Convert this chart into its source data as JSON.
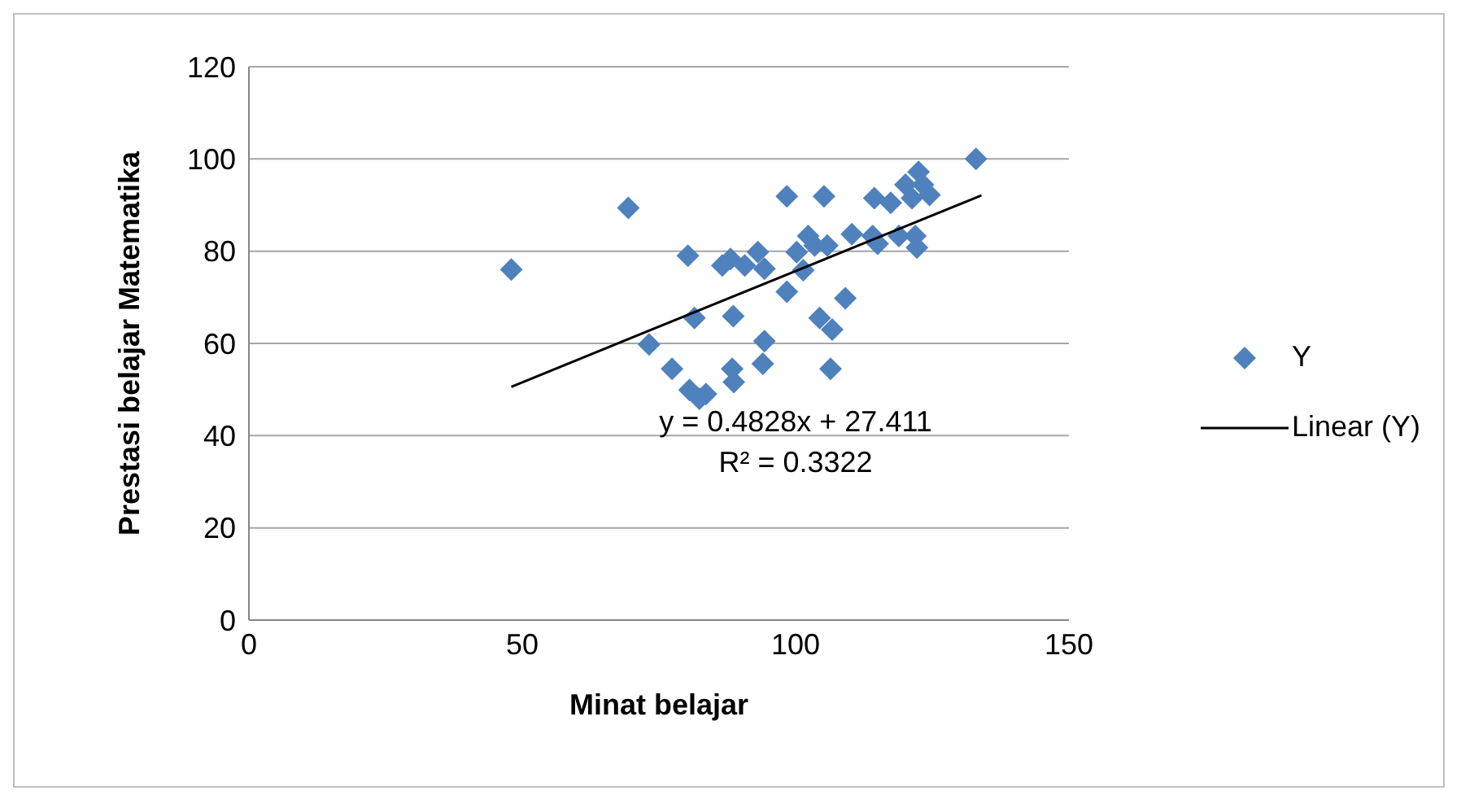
{
  "chart_data": {
    "type": "scatter",
    "xlabel": "Minat belajar",
    "ylabel": "Prestasi belajar Matematika",
    "xlim": [
      0,
      150
    ],
    "xticks": [
      0,
      50,
      100,
      150
    ],
    "ylim": [
      0,
      120
    ],
    "yticks": [
      0,
      20,
      40,
      60,
      80,
      100,
      120
    ],
    "grid": "y",
    "legend": "right",
    "series": [
      {
        "name": "Y",
        "marker": "diamond",
        "color": "#4f81bd",
        "x": [
          48,
          69.4,
          80.3,
          81.5,
          73.2,
          77.4,
          80.6,
          82.4,
          83.6,
          86.6,
          88.1,
          88.6,
          88.4,
          88.7,
          90.7,
          93.1,
          94.3,
          94.3,
          94,
          98.4,
          98.4,
          100.2,
          101.4,
          102.3,
          103.5,
          104.4,
          105.2,
          105.8,
          106.7,
          106.4,
          109.1,
          110.3,
          114.1,
          114.4,
          115,
          117.4,
          118.9,
          120.1,
          121.3,
          121.9,
          122.2,
          122.5,
          123.3,
          124.5,
          133
        ],
        "values": [
          76,
          89.4,
          79,
          65.5,
          59.8,
          54.5,
          49.9,
          48,
          49,
          76.9,
          78.3,
          65.9,
          54.5,
          51.6,
          76.9,
          79.8,
          76.2,
          60.5,
          55.6,
          91.9,
          71.2,
          79.8,
          75.9,
          83.3,
          81.2,
          65.5,
          91.9,
          81.2,
          63,
          54.5,
          69.8,
          83.7,
          83.3,
          91.5,
          81.6,
          90.5,
          83.3,
          94.4,
          91.5,
          83.3,
          80.8,
          97.2,
          94.4,
          92.2,
          100
        ]
      },
      {
        "name": "Linear (Y)",
        "type": "line",
        "marker": "none",
        "color": "#000000",
        "x": [
          48,
          134
        ],
        "values": [
          50.6,
          92.1
        ]
      }
    ],
    "annotations": [
      "y = 0.4828x + 27.411",
      "R² = 0.3322"
    ]
  }
}
